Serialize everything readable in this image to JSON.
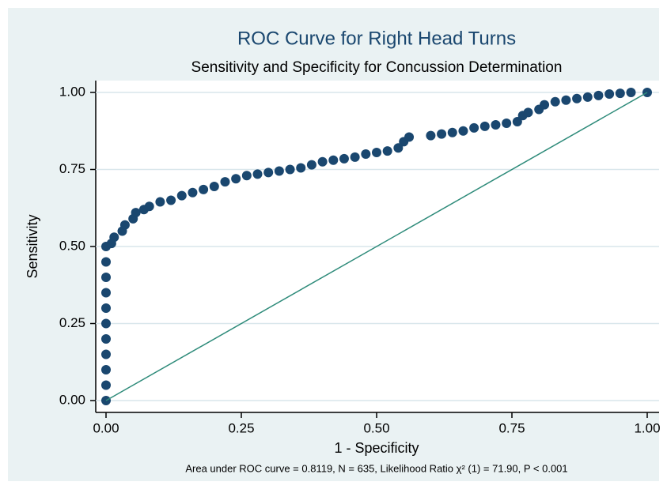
{
  "chart_data": {
    "type": "scatter",
    "title": "ROC Curve for Right Head Turns",
    "subtitle": "Sensitivity and Specificity for Concussion Determination",
    "x_label": "1 - Specificity",
    "y_label": "Sensitivity",
    "note": "Area under ROC curve = 0.8119, N = 635, Likelihood Ratio χ² (1) = 71.90, P < 0.001",
    "xlim": [
      0,
      1
    ],
    "ylim": [
      0,
      1
    ],
    "xticks": [
      {
        "value": 0,
        "label": "0.00"
      },
      0.25,
      {
        "value": 0.5,
        "label": "0.50"
      },
      0.75,
      {
        "value": 1,
        "label": "1.00"
      }
    ],
    "yticks": [
      {
        "value": 0,
        "label": "0.00"
      },
      0.25,
      {
        "value": 0.5,
        "label": "0.50"
      },
      0.75,
      {
        "value": 1,
        "label": "1.00"
      }
    ],
    "grid": true,
    "series": [
      {
        "color": "#1a476f",
        "mode": "markers",
        "x": [
          0,
          0,
          0,
          0,
          0,
          0,
          0,
          0,
          0,
          0,
          0,
          0.01,
          0.015,
          0.03,
          0.035,
          0.05,
          0.055,
          0.07,
          0.08,
          0.1,
          0.12,
          0.14,
          0.16,
          0.18,
          0.2,
          0.22,
          0.24,
          0.26,
          0.28,
          0.3,
          0.32,
          0.34,
          0.36,
          0.38,
          0.4,
          0.42,
          0.44,
          0.46,
          0.48,
          0.5,
          0.52,
          0.54,
          0.55,
          0.56,
          0.6,
          0.62,
          0.64,
          0.66,
          0.68,
          0.7,
          0.72,
          0.74,
          0.76,
          0.77,
          0.78,
          0.8,
          0.81,
          0.83,
          0.85,
          0.87,
          0.89,
          0.91,
          0.93,
          0.95,
          0.97,
          1
        ],
        "values": [
          0,
          0.05,
          0.1,
          0.15,
          0.2,
          0.25,
          0.3,
          0.35,
          0.4,
          0.45,
          0.5,
          0.51,
          0.53,
          0.55,
          0.57,
          0.59,
          0.61,
          0.62,
          0.63,
          0.645,
          0.65,
          0.665,
          0.675,
          0.685,
          0.695,
          0.71,
          0.72,
          0.73,
          0.735,
          0.74,
          0.745,
          0.75,
          0.755,
          0.765,
          0.775,
          0.78,
          0.785,
          0.79,
          0.8,
          0.805,
          0.81,
          0.82,
          0.84,
          0.855,
          0.86,
          0.865,
          0.87,
          0.875,
          0.885,
          0.89,
          0.895,
          0.9,
          0.905,
          0.925,
          0.935,
          0.945,
          0.96,
          0.97,
          0.975,
          0.98,
          0.985,
          0.99,
          0.995,
          0.997,
          1,
          1
        ]
      },
      {
        "color": "#2e8b7a",
        "mode": "line",
        "x": [
          0,
          1
        ],
        "values": [
          0,
          1
        ]
      }
    ]
  }
}
